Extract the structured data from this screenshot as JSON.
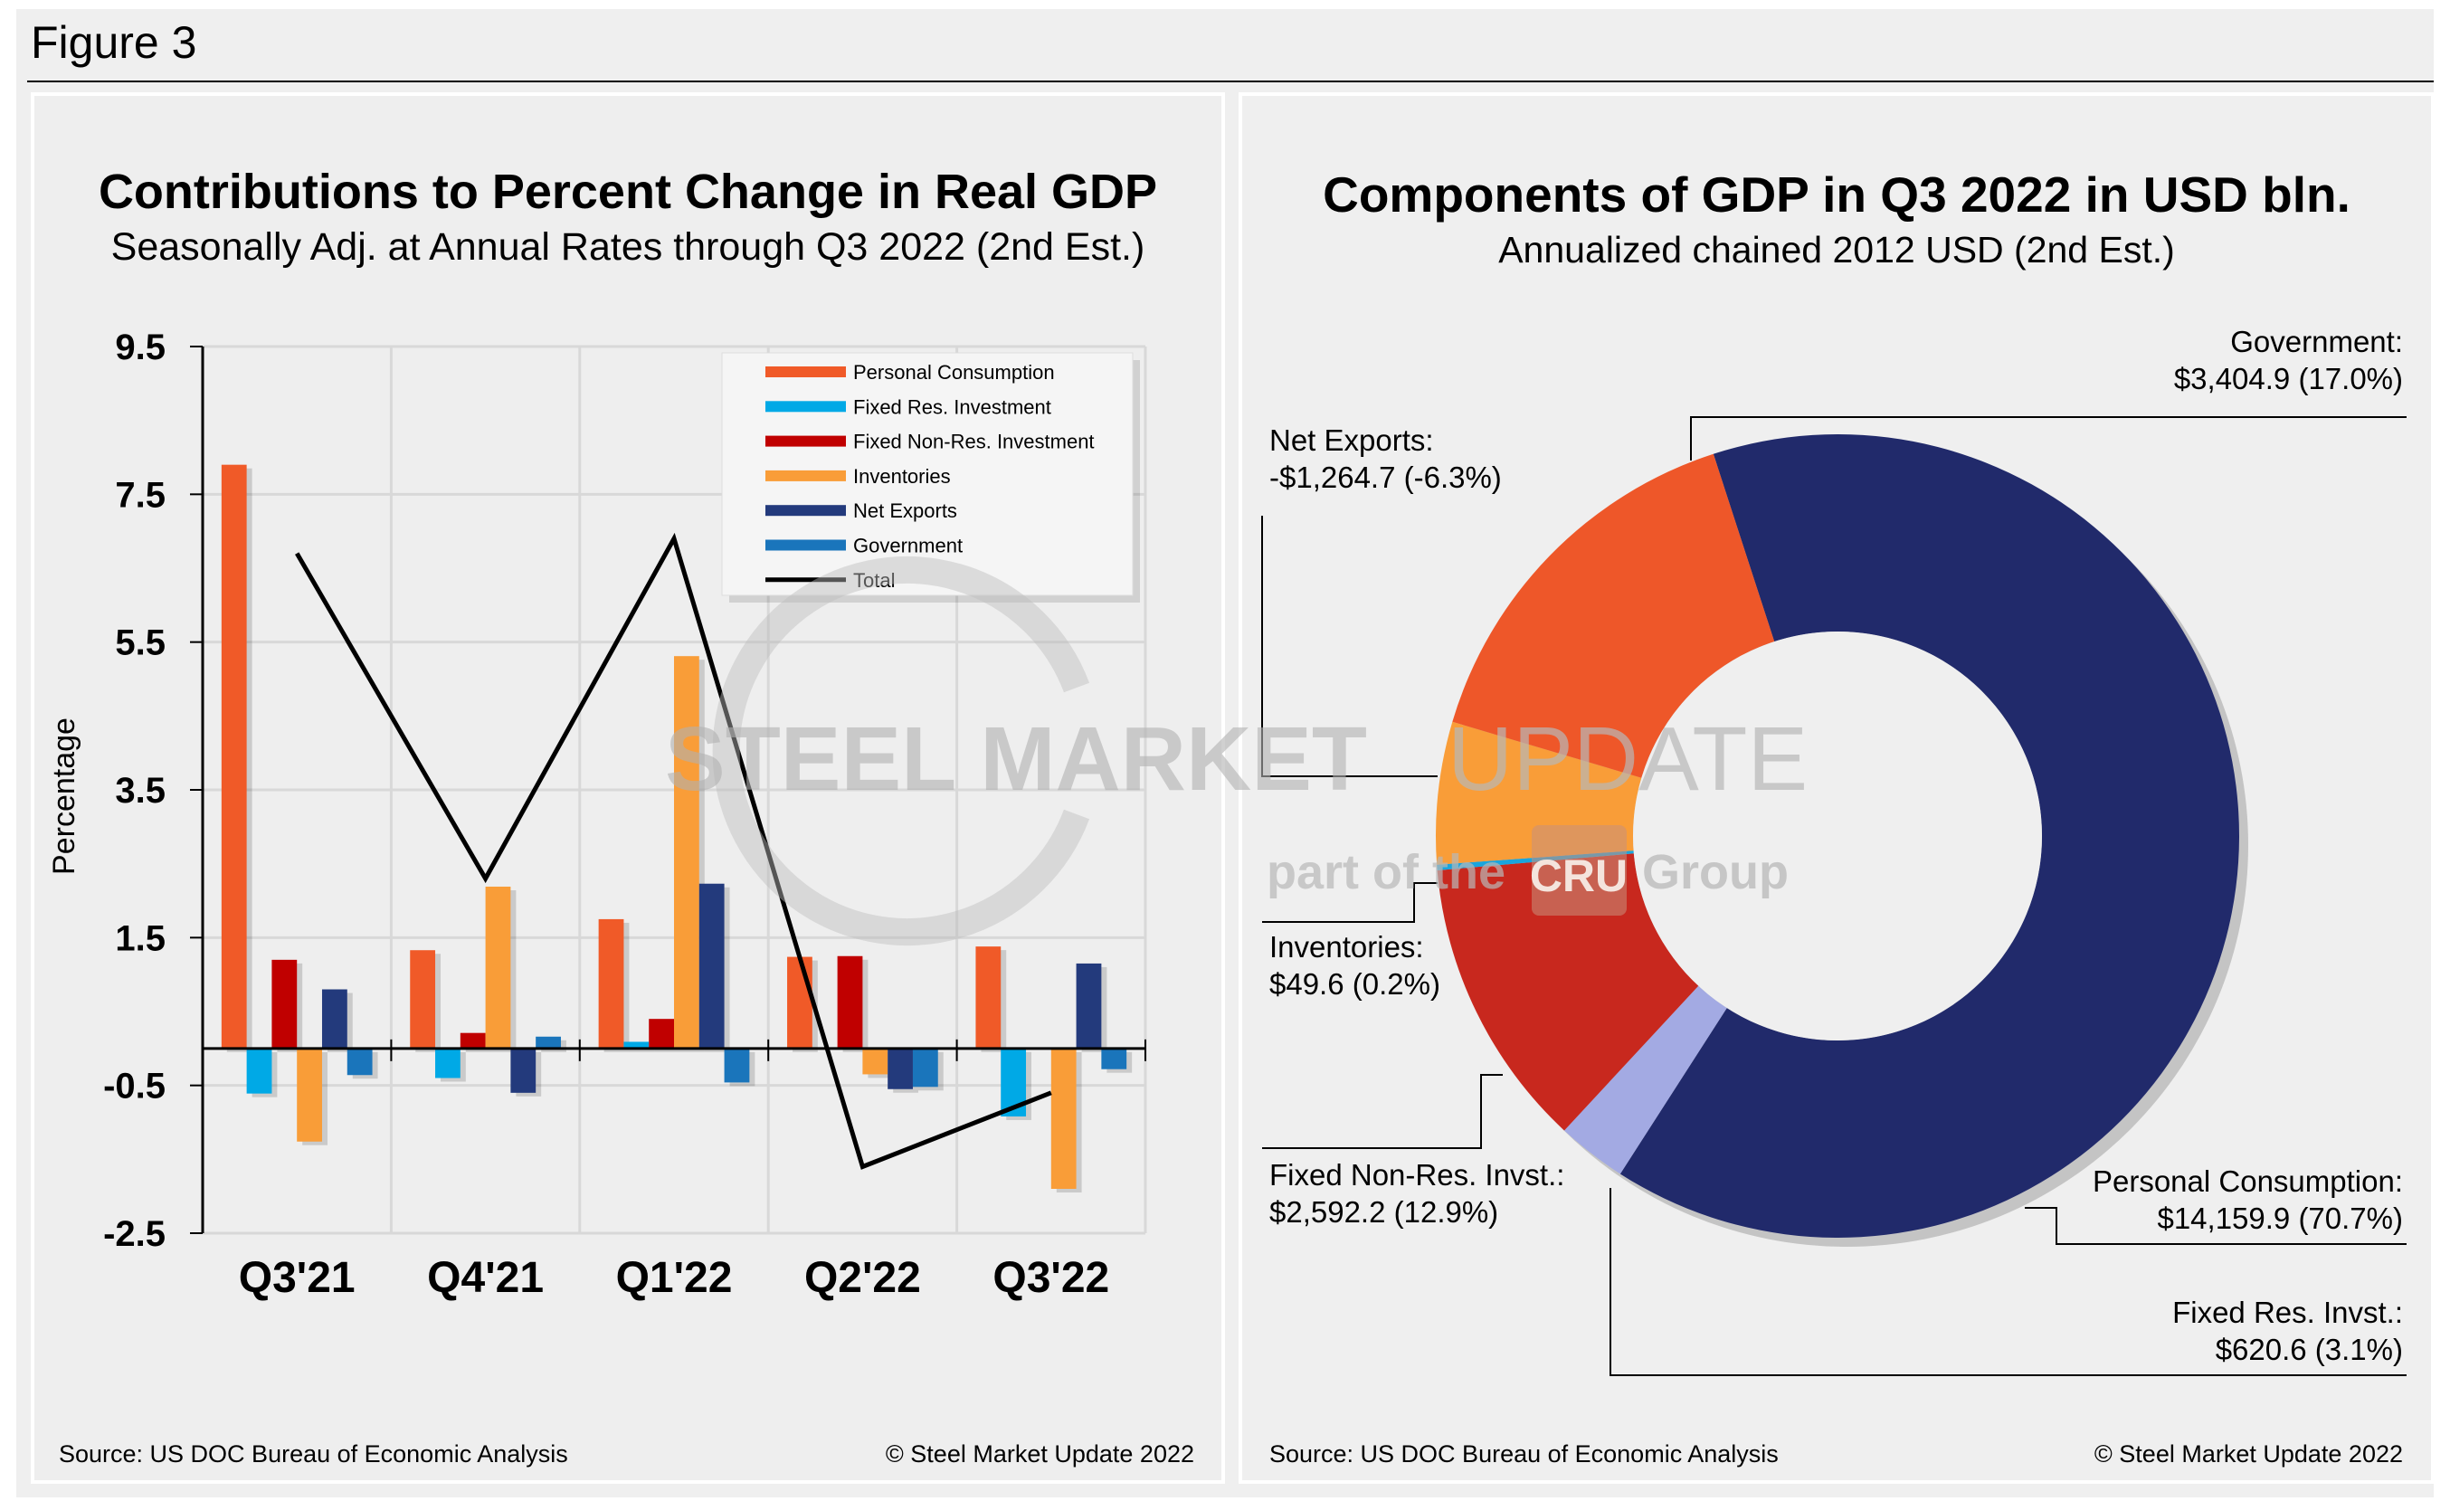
{
  "figure_label": "Figure 3",
  "chart_data": [
    {
      "type": "bar",
      "title": "Contributions to Percent Change in Real GDP",
      "subtitle": "Seasonally Adj. at Annual Rates through Q3 2022 (2nd Est.)",
      "ylabel": "Percentage",
      "ylim": [
        -2.5,
        9.5
      ],
      "yticks": [
        "9.5",
        "7.5",
        "5.5",
        "3.5",
        "1.5",
        "-0.5",
        "-2.5"
      ],
      "categories": [
        "Q3'21",
        "Q4'21",
        "Q1'22",
        "Q2'22",
        "Q3'22"
      ],
      "grid": true,
      "legend_placement": "top-right",
      "series": [
        {
          "name": "Personal Consumption",
          "color": "#f05a28",
          "values": [
            7.9,
            1.33,
            1.75,
            1.24,
            1.38
          ]
        },
        {
          "name": "Fixed Res. Investment",
          "color": "#00a9e6",
          "values": [
            -0.61,
            -0.4,
            0.09,
            0.0,
            -0.92
          ]
        },
        {
          "name": "Fixed Non-Res. Investment",
          "color": "#c00000",
          "values": [
            1.2,
            0.21,
            0.4,
            1.25,
            0.0
          ]
        },
        {
          "name": "Inventories",
          "color": "#f99d38",
          "values": [
            -1.26,
            2.19,
            5.31,
            -0.35,
            -1.9
          ]
        },
        {
          "name": "Net Exports",
          "color": "#233a7c",
          "values": [
            0.8,
            -0.6,
            2.23,
            -0.55,
            1.15
          ]
        },
        {
          "name": "Government",
          "color": "#1a75bb",
          "values": [
            -0.36,
            0.16,
            -0.46,
            -0.52,
            -0.28
          ]
        }
      ],
      "line": {
        "name": "Total",
        "color": "#000000",
        "values": [
          6.7,
          2.3,
          6.9,
          -1.6,
          -0.6
        ]
      },
      "source": "Source: US DOC Bureau of Economic Analysis",
      "copyright": "© Steel Market Update 2022"
    },
    {
      "type": "pie",
      "donut": true,
      "title": "Components of GDP in Q3 2022 in USD bln.",
      "subtitle": "Annualized chained 2012 USD (2nd Est.)",
      "slices": [
        {
          "name": "Personal Consumption:",
          "value": 14159.9,
          "label": "$14,159.9 (70.7%)",
          "color": "#212a6b"
        },
        {
          "name": "Fixed Res. Invst.:",
          "value": 620.6,
          "label": "$620.6 (3.1%)",
          "color": "#a3aae3"
        },
        {
          "name": "Fixed Non-Res. Invst.:",
          "value": 2592.2,
          "label": "$2,592.2 (12.9%)",
          "color": "#c8281e"
        },
        {
          "name": "Inventories:",
          "value": 49.6,
          "label": "$49.6 (0.2%)",
          "color": "#1aa5dd"
        },
        {
          "name": "Net Exports:",
          "value": -1264.7,
          "label": "-$1,264.7 (-6.3%)",
          "color": "#f99d38"
        },
        {
          "name": "Government:",
          "value": 3404.9,
          "label": "$3,404.9 (17.0%)",
          "color": "#ee5729"
        }
      ],
      "source": "Source: US DOC Bureau of Economic Analysis",
      "copyright": "© Steel Market Update 2022"
    }
  ],
  "watermark": {
    "line1a": "STEEL MARKET",
    "line1b": "UPDATE",
    "line2a": "part of the",
    "logo": "CRU",
    "line2b": "Group"
  }
}
